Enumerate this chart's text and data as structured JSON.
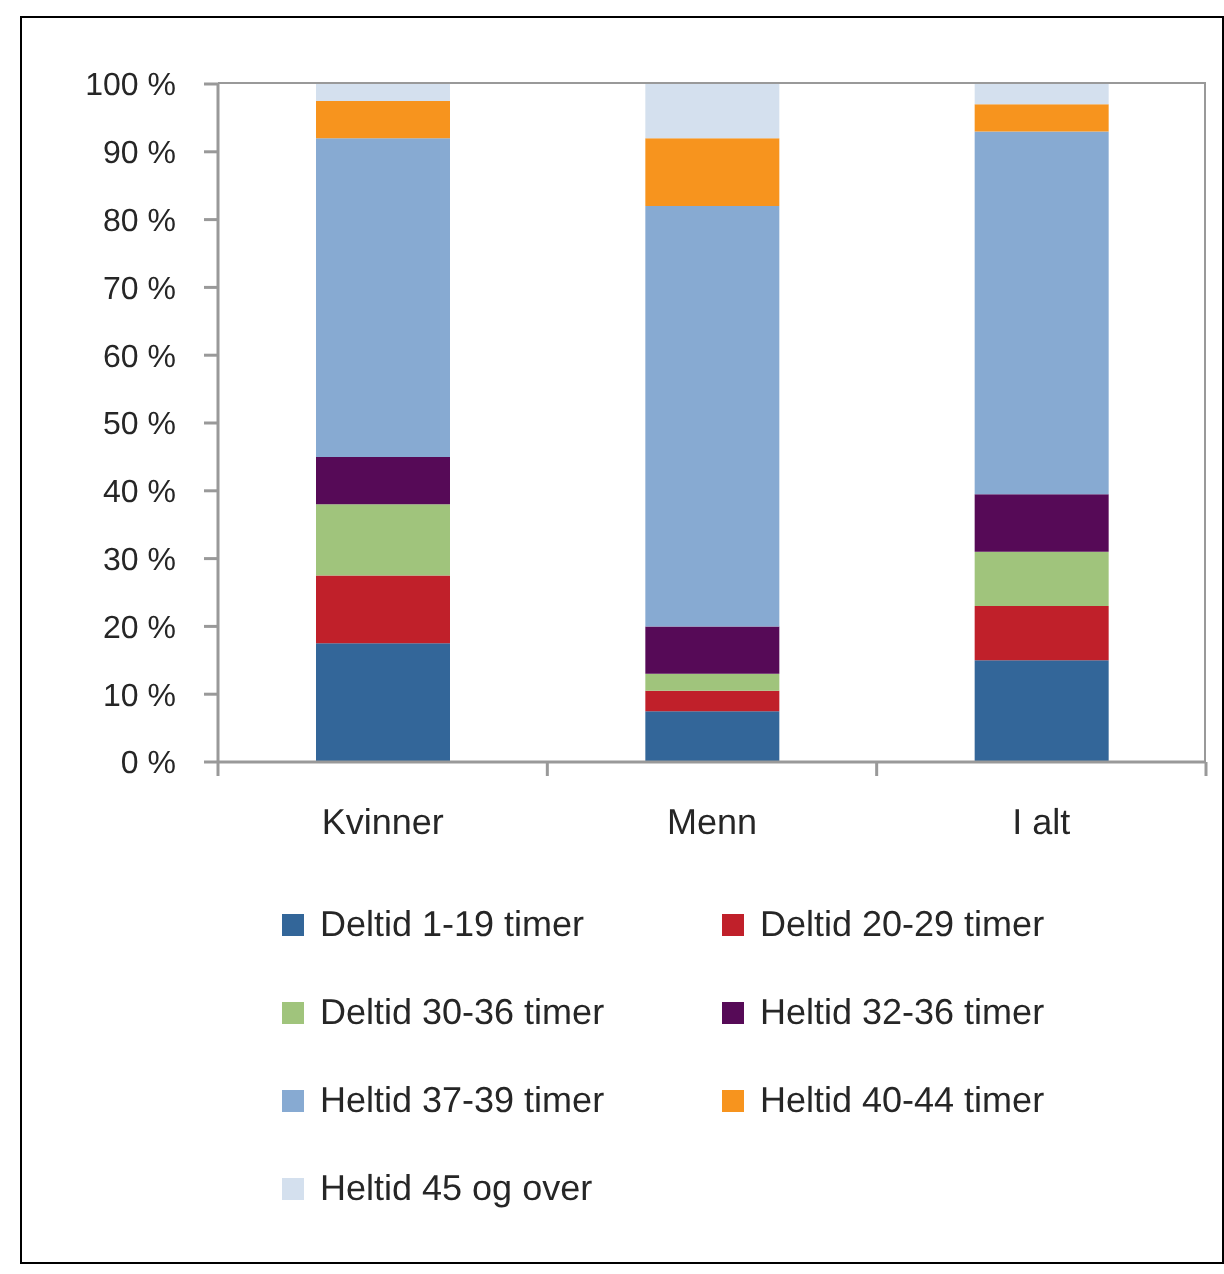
{
  "chart_data": {
    "type": "bar",
    "stacked": true,
    "categories": [
      "Kvinner",
      "Menn",
      "I alt"
    ],
    "series": [
      {
        "name": "Deltid 1-19 timer",
        "color": "#336699",
        "values": [
          17.5,
          7.5,
          15
        ]
      },
      {
        "name": "Deltid 20-29 timer",
        "color": "#c0202a",
        "values": [
          10,
          3,
          8
        ]
      },
      {
        "name": "Deltid 30-36 timer",
        "color": "#a0c47c",
        "values": [
          10.5,
          2.5,
          8
        ]
      },
      {
        "name": "Heltid 32-36 timer",
        "color": "#560a57",
        "values": [
          7,
          7,
          8.5
        ]
      },
      {
        "name": "Heltid 37-39 timer",
        "color": "#87aad2",
        "values": [
          47,
          62,
          53.5
        ]
      },
      {
        "name": "Heltid 40-44 timer",
        "color": "#f7941e",
        "values": [
          5.5,
          10,
          4
        ]
      },
      {
        "name": "Heltid 45 og over",
        "color": "#d4e0ee",
        "values": [
          2.5,
          8,
          3
        ]
      }
    ],
    "ylim": [
      0,
      100
    ],
    "yticks": [
      {
        "value": 0,
        "label": "0 %"
      },
      {
        "value": 10,
        "label": "10 %"
      },
      {
        "value": 20,
        "label": "20 %"
      },
      {
        "value": 30,
        "label": "30 %"
      },
      {
        "value": 40,
        "label": "40 %"
      },
      {
        "value": 50,
        "label": "50 %"
      },
      {
        "value": 60,
        "label": "60 %"
      },
      {
        "value": 70,
        "label": "70 %"
      },
      {
        "value": 80,
        "label": "80 %"
      },
      {
        "value": 90,
        "label": "90 %"
      },
      {
        "value": 100,
        "label": "100 %"
      }
    ],
    "legend": "bottom"
  }
}
